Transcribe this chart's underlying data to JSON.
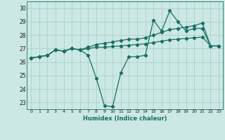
{
  "xlabel": "Humidex (Indice chaleur)",
  "bg_color": "#cce8e4",
  "grid_color": "#aad0cc",
  "line_color": "#1a6e64",
  "xlim": [
    -0.5,
    23.5
  ],
  "ylim": [
    22.5,
    30.5
  ],
  "yticks": [
    23,
    24,
    25,
    26,
    27,
    28,
    29,
    30
  ],
  "xticks": [
    0,
    1,
    2,
    3,
    4,
    5,
    6,
    7,
    8,
    9,
    10,
    11,
    12,
    13,
    14,
    15,
    16,
    17,
    18,
    19,
    20,
    21,
    22,
    23
  ],
  "series1": [
    26.3,
    26.4,
    26.5,
    26.9,
    26.8,
    27.0,
    26.9,
    26.5,
    24.8,
    22.75,
    22.7,
    25.2,
    26.4,
    26.4,
    26.5,
    29.1,
    28.3,
    29.8,
    29.0,
    28.3,
    28.5,
    28.5,
    27.2,
    27.2
  ],
  "series2": [
    26.3,
    26.4,
    26.5,
    26.9,
    26.8,
    27.0,
    26.9,
    27.0,
    27.1,
    27.1,
    27.15,
    27.2,
    27.25,
    27.3,
    27.35,
    27.45,
    27.55,
    27.65,
    27.7,
    27.75,
    27.8,
    27.85,
    27.2,
    27.2
  ],
  "series3": [
    26.3,
    26.4,
    26.5,
    26.9,
    26.8,
    27.0,
    26.9,
    27.1,
    27.3,
    27.4,
    27.5,
    27.6,
    27.7,
    27.7,
    27.8,
    28.0,
    28.2,
    28.4,
    28.5,
    28.6,
    28.7,
    28.9,
    27.2,
    27.2
  ]
}
